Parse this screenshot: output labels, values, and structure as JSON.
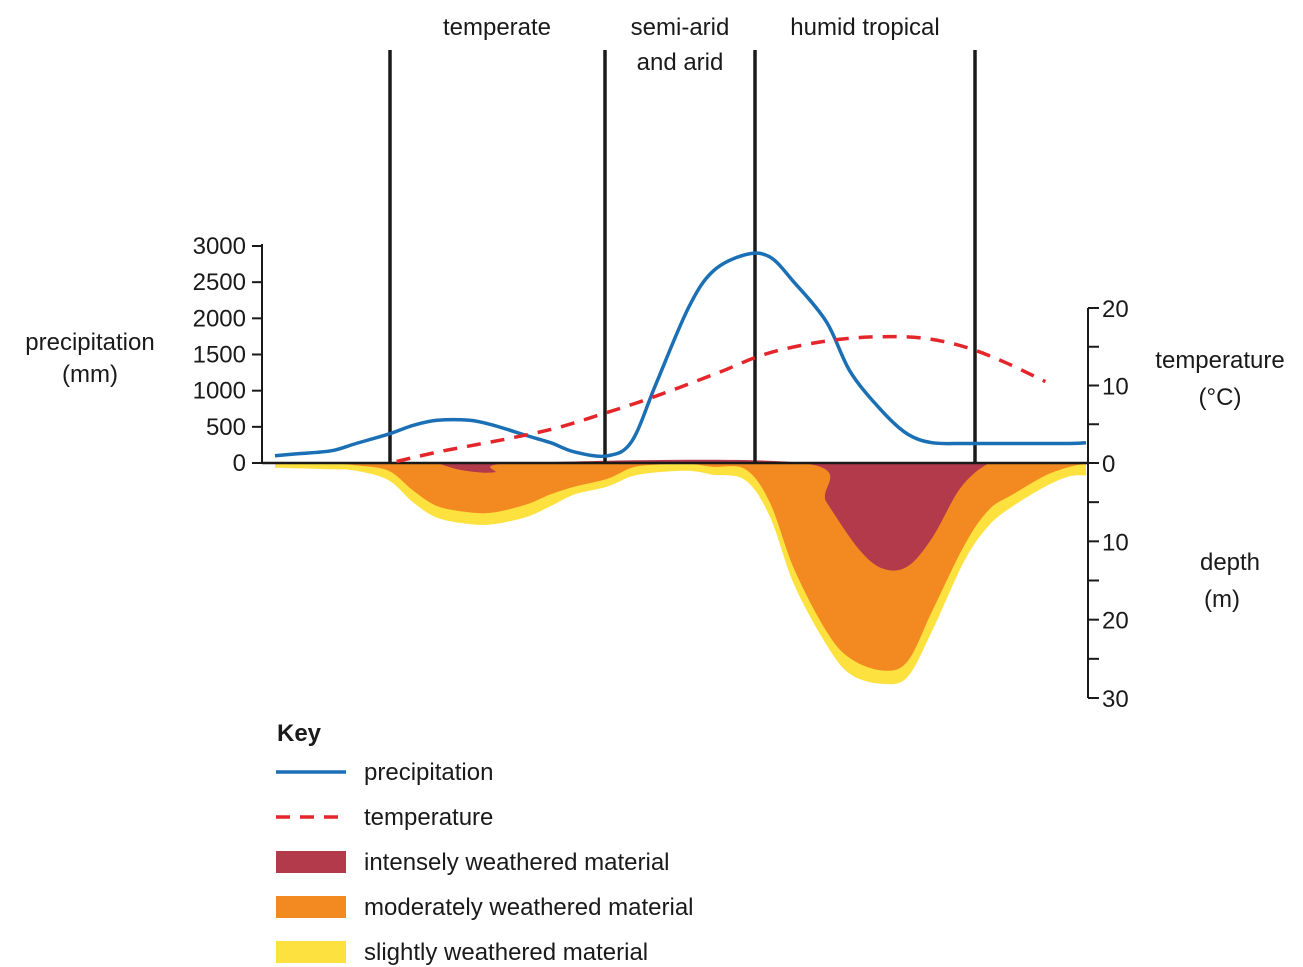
{
  "chart_data": {
    "type": "line",
    "zones": [
      {
        "label_lines": [
          "temperate"
        ]
      },
      {
        "label_lines": [
          "semi-arid",
          "and arid"
        ]
      },
      {
        "label_lines": [
          "humid tropical"
        ]
      }
    ],
    "left_axis": {
      "label_lines": [
        "precipitation",
        "(mm)"
      ],
      "ticks": [
        "0",
        "500",
        "1000",
        "1500",
        "2000",
        "2500",
        "3000"
      ],
      "range": [
        0,
        3000
      ]
    },
    "right_axis_temperature": {
      "label_lines": [
        "temperature",
        "(°C)"
      ],
      "ticks": [
        "0",
        "10",
        "20"
      ],
      "range": [
        0,
        20
      ]
    },
    "right_axis_depth": {
      "label_lines": [
        "depth",
        "(m)"
      ],
      "ticks": [
        "10",
        "20",
        "30"
      ],
      "range": [
        0,
        30
      ]
    },
    "series": [
      {
        "name": "precipitation",
        "axis": "left",
        "color": "#1a6fb5",
        "style": "solid",
        "x": [
          0,
          3,
          7,
          10,
          14,
          17,
          20,
          24,
          27,
          31,
          34,
          37,
          41,
          44,
          47,
          51,
          54,
          58,
          61,
          64,
          68,
          71,
          75,
          78,
          81,
          85,
          88,
          91,
          95,
          98,
          100
        ],
        "y": [
          100,
          130,
          170,
          270,
          400,
          520,
          590,
          590,
          520,
          380,
          280,
          150,
          100,
          300,
          1100,
          2150,
          2650,
          2880,
          2850,
          2500,
          1950,
          1250,
          700,
          400,
          280,
          270,
          270,
          270,
          270,
          270,
          280
        ]
      },
      {
        "name": "temperature",
        "axis": "right",
        "color": "#e4262b",
        "style": "dashed",
        "x": [
          15,
          20,
          25,
          30,
          35,
          40,
          45,
          50,
          55,
          60,
          65,
          70,
          75,
          80,
          85,
          90,
          95
        ],
        "y": [
          0.2,
          1.4,
          2.4,
          3.4,
          4.6,
          6.2,
          7.9,
          9.8,
          11.8,
          13.9,
          15.2,
          16.0,
          16.3,
          16.1,
          15.0,
          13.0,
          10.5
        ]
      },
      {
        "name": "intensely weathered material",
        "axis": "depth",
        "color": "#b23a4b",
        "x": [
          20,
          23,
          27,
          30,
          65,
          68,
          72,
          75,
          78,
          81,
          84,
          86,
          88
        ],
        "depth_m": [
          0,
          0.9,
          1.2,
          0,
          0,
          5,
          11,
          13.5,
          13.2,
          9.6,
          4,
          1.5,
          0
        ]
      },
      {
        "name": "moderately weathered material",
        "axis": "depth",
        "color": "#f28a21",
        "x": [
          0,
          7,
          10,
          14,
          17,
          20,
          24,
          27,
          31,
          34,
          37,
          41,
          44,
          47,
          51,
          54,
          58,
          61,
          64,
          68,
          71,
          75,
          78,
          81,
          85,
          88,
          91,
          95,
          98,
          100
        ],
        "depth_m": [
          0,
          0.1,
          0.3,
          1.0,
          3.5,
          5.5,
          6.3,
          6.3,
          5.3,
          4.0,
          3.0,
          2.0,
          0.6,
          0.2,
          0.1,
          0.5,
          0.8,
          5.0,
          13.5,
          21.5,
          25.0,
          26.5,
          25.3,
          19.0,
          10.5,
          6.0,
          4.0,
          1.6,
          0.5,
          0.1
        ]
      },
      {
        "name": "slightly weathered material",
        "axis": "depth",
        "color": "#fde13f",
        "x": [
          0,
          7,
          10,
          14,
          17,
          20,
          24,
          27,
          31,
          34,
          37,
          41,
          44,
          47,
          51,
          54,
          58,
          61,
          64,
          68,
          71,
          75,
          78,
          81,
          85,
          88,
          91,
          95,
          98,
          100
        ],
        "depth_m": [
          0.6,
          0.8,
          1.0,
          2.2,
          5.0,
          7.0,
          7.8,
          7.8,
          6.9,
          5.5,
          4.0,
          3.0,
          1.7,
          1.2,
          1.0,
          1.5,
          2.2,
          6.8,
          15.5,
          23.2,
          27.0,
          28.2,
          27.3,
          21.5,
          12.5,
          8.0,
          5.5,
          3.0,
          1.7,
          1.6
        ]
      }
    ],
    "key": {
      "title": "Key",
      "items": [
        {
          "label": "precipitation",
          "swatch": "line",
          "color": "#1a6fb5"
        },
        {
          "label": "temperature",
          "swatch": "dashed",
          "color": "#e4262b"
        },
        {
          "label": "intensely weathered material",
          "swatch": "box",
          "color": "#b23a4b"
        },
        {
          "label": "moderately weathered material",
          "swatch": "box",
          "color": "#f28a21"
        },
        {
          "label": "slightly weathered material",
          "swatch": "box",
          "color": "#fde13f"
        }
      ]
    },
    "grid": false
  }
}
